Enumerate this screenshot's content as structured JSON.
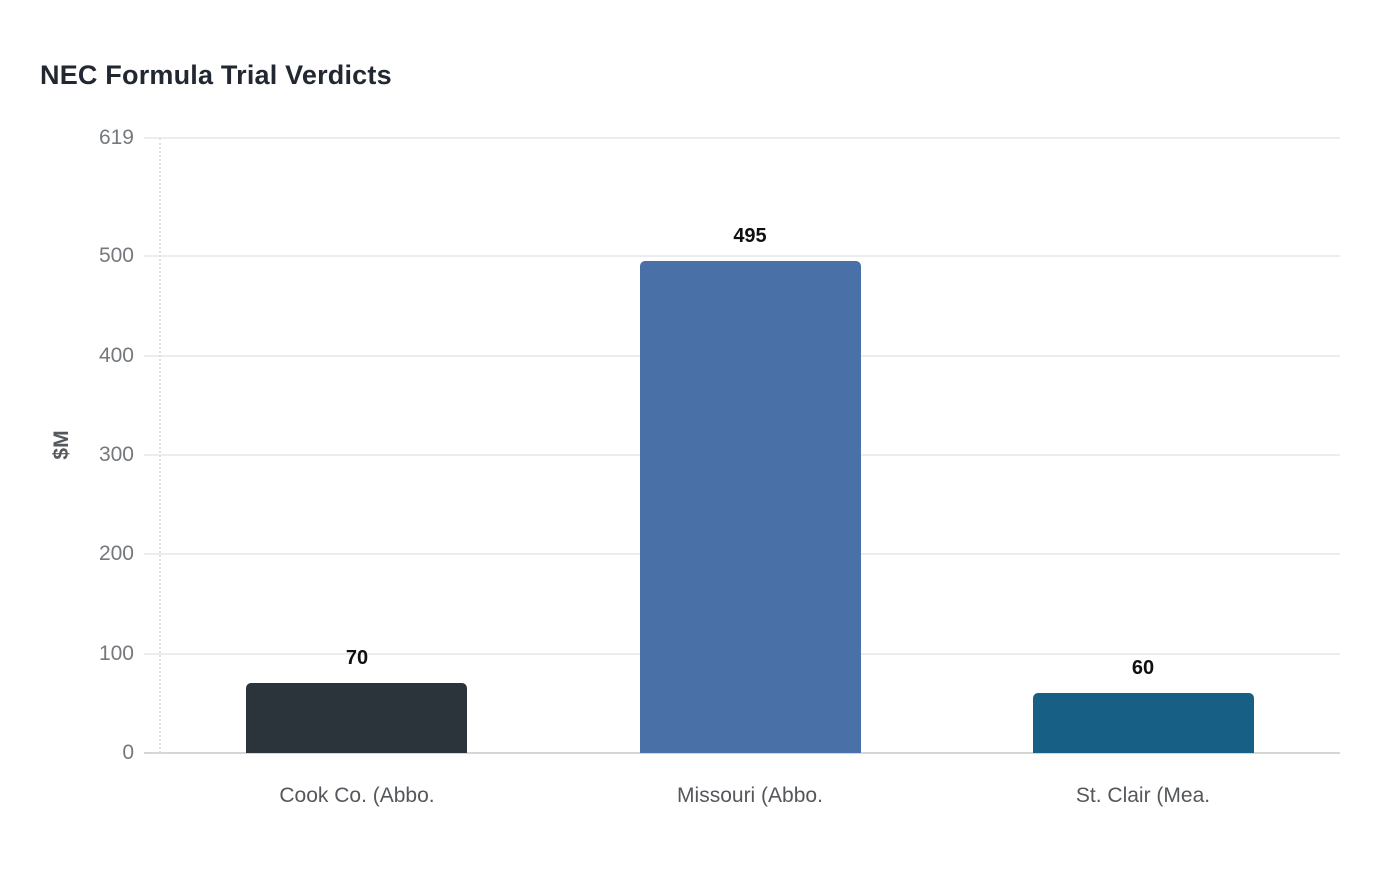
{
  "title": "NEC Formula Trial Verdicts",
  "chart_data": {
    "type": "bar",
    "title": "NEC Formula Trial Verdicts",
    "categories": [
      "Cook Co. (Abbo.",
      "Missouri (Abbo.",
      "St. Clair (Mea."
    ],
    "values": [
      70,
      495,
      60
    ],
    "bar_colors": [
      "#2a343a",
      "#4a70a8",
      "#175f85"
    ],
    "xlabel": "",
    "ylabel": "$M",
    "ylim": [
      0,
      619
    ],
    "yticks": [
      0,
      100,
      200,
      300,
      400,
      500,
      619
    ],
    "grid": true,
    "legend": false
  },
  "colors": {
    "background": "#ffffff",
    "title_text": "#222831",
    "gridline": "#ededed",
    "zero_line": "#d6d6d6",
    "axis_dotted_line": "#e0e0e0",
    "y_tick_text": "#75787c",
    "x_tick_text": "#54575b",
    "axis_title_text": "#55585c",
    "value_label_text": "#101010"
  }
}
